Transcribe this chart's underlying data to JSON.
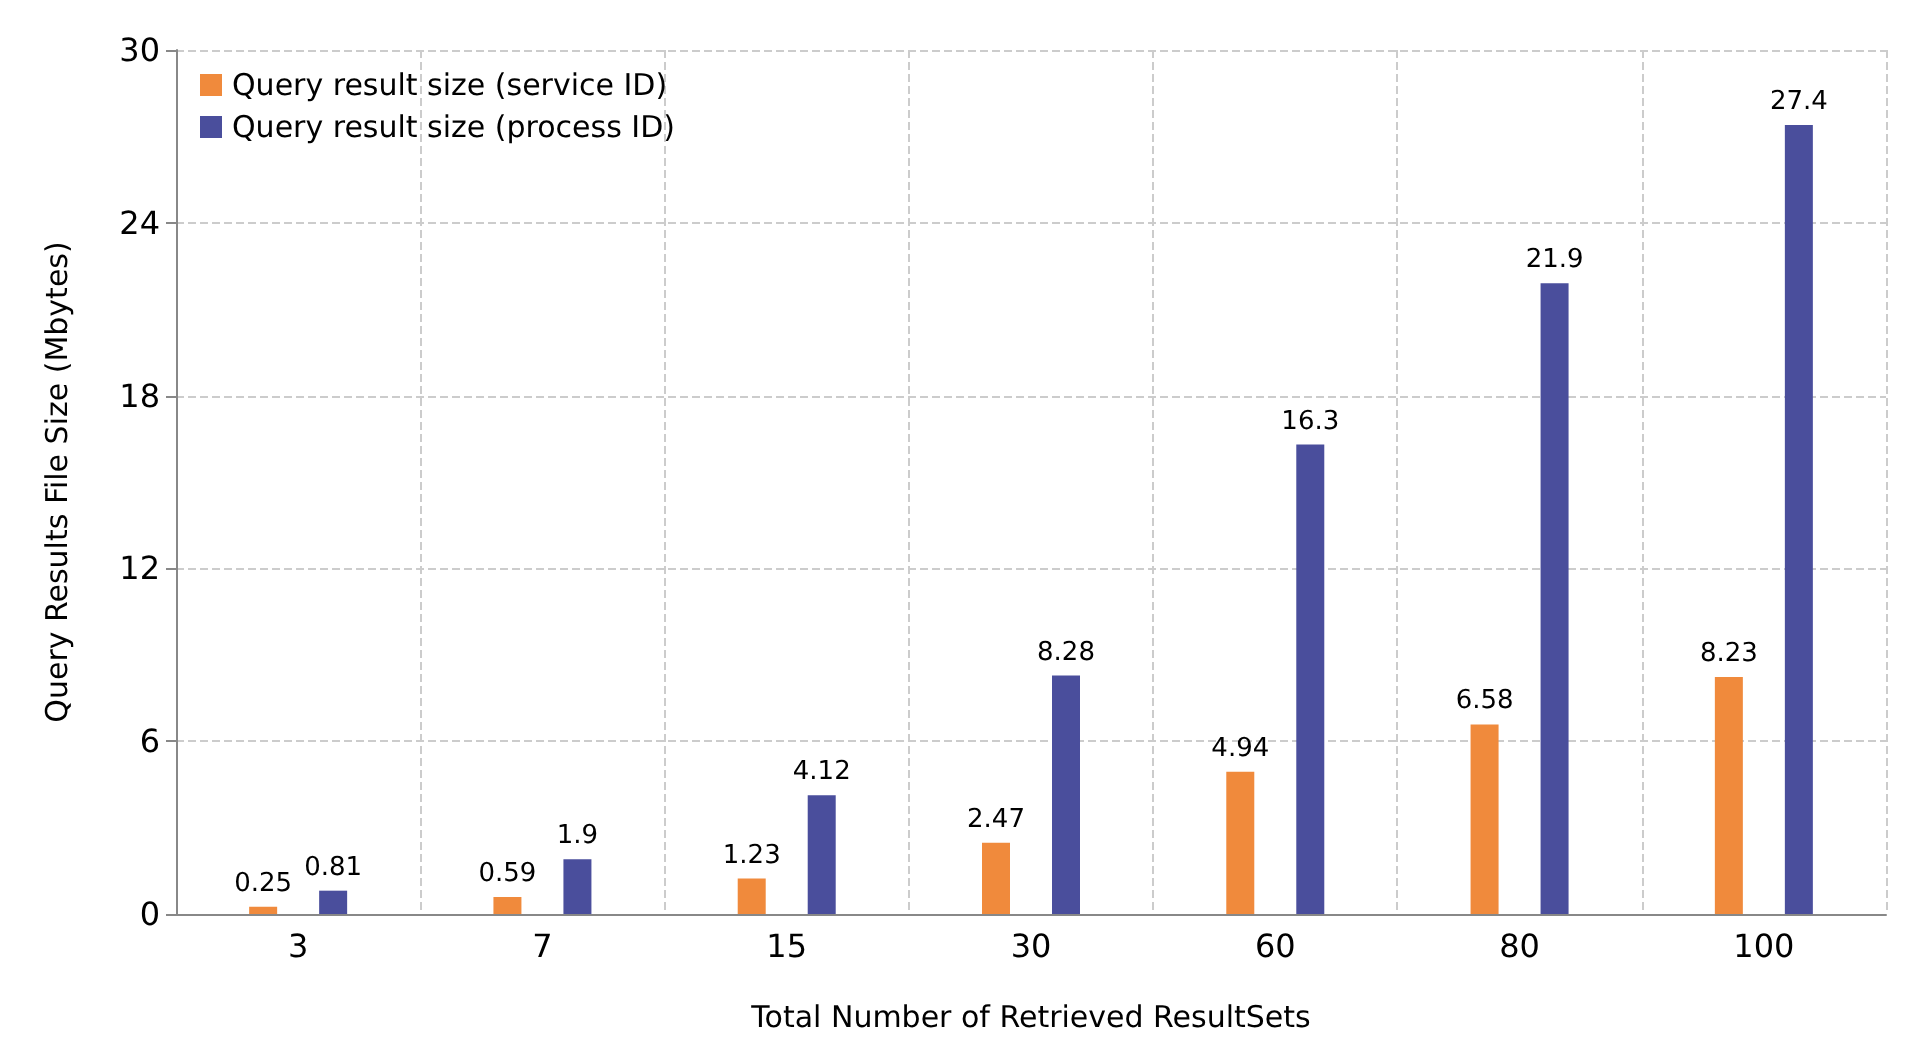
{
  "chart_data": {
    "type": "bar",
    "xlabel": "Total Number of Retrieved ResultSets",
    "ylabel": "Query Results File Size (Mbytes)",
    "categories": [
      "3",
      "7",
      "15",
      "30",
      "60",
      "80",
      "100"
    ],
    "series": [
      {
        "name": "Query result size (service ID)",
        "color": "#f08a3c",
        "values": [
          0.25,
          0.59,
          1.23,
          2.47,
          4.94,
          6.58,
          8.23
        ]
      },
      {
        "name": "Query result size (process ID)",
        "color": "#4a4e9c",
        "values": [
          0.81,
          1.9,
          4.12,
          8.28,
          16.3,
          21.9,
          27.4
        ]
      }
    ],
    "ylim": [
      0,
      30
    ],
    "yticks": [
      0,
      6,
      12,
      18,
      24,
      30
    ],
    "grid": true,
    "legend": "top left",
    "data_labels": true
  }
}
